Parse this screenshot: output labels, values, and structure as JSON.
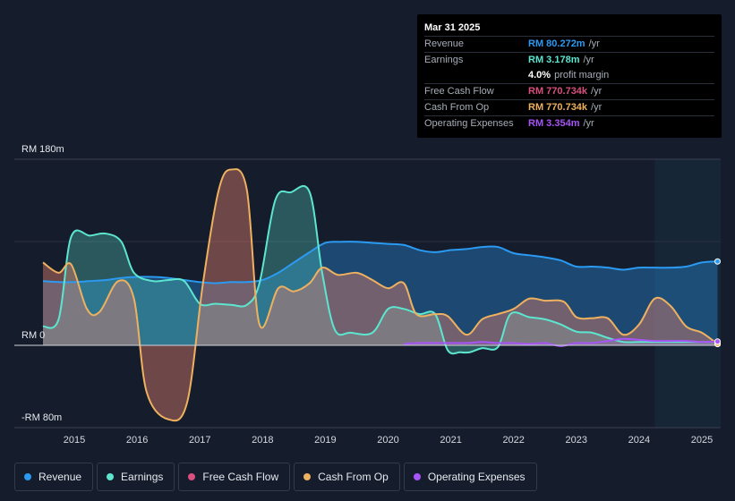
{
  "tooltip": {
    "date": "Mar 31 2025",
    "rows": [
      {
        "label": "Revenue",
        "value": "RM 80.272m",
        "unit": "/yr",
        "color": "#2b9af3"
      },
      {
        "label": "Earnings",
        "value": "RM 3.178m",
        "unit": "/yr",
        "color": "#5de6cf"
      },
      {
        "label": "",
        "value": "4.0%",
        "unit": "profit margin",
        "color": "#ffffff"
      },
      {
        "label": "Free Cash Flow",
        "value": "RM 770.734k",
        "unit": "/yr",
        "color": "#d94f7e"
      },
      {
        "label": "Cash From Op",
        "value": "RM 770.734k",
        "unit": "/yr",
        "color": "#eeb15f"
      },
      {
        "label": "Operating Expenses",
        "value": "RM 3.354m",
        "unit": "/yr",
        "color": "#a855f7"
      }
    ]
  },
  "legend": [
    {
      "label": "Revenue",
      "color": "#2b9af3"
    },
    {
      "label": "Earnings",
      "color": "#5de6cf"
    },
    {
      "label": "Free Cash Flow",
      "color": "#d94f7e"
    },
    {
      "label": "Cash From Op",
      "color": "#eeb15f"
    },
    {
      "label": "Operating Expenses",
      "color": "#a855f7"
    }
  ],
  "chart_data": {
    "type": "area",
    "title": "",
    "y_axis_labels": {
      "top": "RM 180m",
      "zero": "RM 0",
      "bottom": "-RM 80m"
    },
    "ylim": [
      -80,
      180
    ],
    "xlim": [
      2014.5,
      2025.3
    ],
    "x_ticks": [
      {
        "label": "2015",
        "value": 2015
      },
      {
        "label": "2016",
        "value": 2016
      },
      {
        "label": "2017",
        "value": 2017
      },
      {
        "label": "2018",
        "value": 2018
      },
      {
        "label": "2019",
        "value": 2019
      },
      {
        "label": "2020",
        "value": 2020
      },
      {
        "label": "2021",
        "value": 2021
      },
      {
        "label": "2022",
        "value": 2022
      },
      {
        "label": "2023",
        "value": 2023
      },
      {
        "label": "2024",
        "value": 2024
      },
      {
        "label": "2025",
        "value": 2025
      }
    ],
    "forecast_start": 2024.25,
    "series": [
      {
        "name": "Revenue",
        "color": "#2b9af3",
        "points": [
          [
            2014.5,
            62
          ],
          [
            2014.75,
            61
          ],
          [
            2015,
            61
          ],
          [
            2015.25,
            62
          ],
          [
            2015.5,
            63
          ],
          [
            2015.75,
            65
          ],
          [
            2016,
            66
          ],
          [
            2016.25,
            66
          ],
          [
            2016.5,
            65
          ],
          [
            2016.75,
            63
          ],
          [
            2017,
            61
          ],
          [
            2017.25,
            60
          ],
          [
            2017.5,
            61
          ],
          [
            2017.75,
            61
          ],
          [
            2018,
            63
          ],
          [
            2018.25,
            70
          ],
          [
            2018.5,
            80
          ],
          [
            2018.75,
            90
          ],
          [
            2019,
            99
          ],
          [
            2019.25,
            100
          ],
          [
            2019.5,
            100
          ],
          [
            2019.75,
            99
          ],
          [
            2020,
            98
          ],
          [
            2020.25,
            97
          ],
          [
            2020.5,
            92
          ],
          [
            2020.75,
            90
          ],
          [
            2021,
            92
          ],
          [
            2021.25,
            93
          ],
          [
            2021.5,
            95
          ],
          [
            2021.75,
            95
          ],
          [
            2022,
            89
          ],
          [
            2022.25,
            87
          ],
          [
            2022.5,
            85
          ],
          [
            2022.75,
            82
          ],
          [
            2023,
            76
          ],
          [
            2023.25,
            76
          ],
          [
            2023.5,
            75
          ],
          [
            2023.75,
            73
          ],
          [
            2024,
            75
          ],
          [
            2024.25,
            75
          ],
          [
            2024.5,
            75
          ],
          [
            2024.75,
            76
          ],
          [
            2025,
            80
          ],
          [
            2025.25,
            81
          ]
        ]
      },
      {
        "name": "Earnings",
        "color": "#5de6cf",
        "points": [
          [
            2014.5,
            18
          ],
          [
            2014.75,
            25
          ],
          [
            2014.95,
            105
          ],
          [
            2015.25,
            106
          ],
          [
            2015.5,
            108
          ],
          [
            2015.75,
            100
          ],
          [
            2015.95,
            70
          ],
          [
            2016.25,
            62
          ],
          [
            2016.5,
            63
          ],
          [
            2016.75,
            62
          ],
          [
            2017,
            40
          ],
          [
            2017.25,
            40
          ],
          [
            2017.5,
            39
          ],
          [
            2017.75,
            39
          ],
          [
            2017.95,
            60
          ],
          [
            2018.2,
            140
          ],
          [
            2018.45,
            148
          ],
          [
            2018.75,
            148
          ],
          [
            2018.95,
            70
          ],
          [
            2019.15,
            15
          ],
          [
            2019.4,
            12
          ],
          [
            2019.75,
            12
          ],
          [
            2020,
            35
          ],
          [
            2020.25,
            35
          ],
          [
            2020.5,
            30
          ],
          [
            2020.75,
            30
          ],
          [
            2020.95,
            -5
          ],
          [
            2021.15,
            -7
          ],
          [
            2021.3,
            -7
          ],
          [
            2021.5,
            -3
          ],
          [
            2021.75,
            -2
          ],
          [
            2021.95,
            30
          ],
          [
            2022.25,
            27
          ],
          [
            2022.5,
            25
          ],
          [
            2022.75,
            20
          ],
          [
            2023,
            13
          ],
          [
            2023.25,
            12
          ],
          [
            2023.5,
            7
          ],
          [
            2023.75,
            3
          ],
          [
            2024,
            3
          ],
          [
            2024.5,
            3
          ],
          [
            2024.75,
            3
          ],
          [
            2025.25,
            3
          ]
        ]
      },
      {
        "name": "Free Cash Flow",
        "color": "#d94f7e",
        "points": [
          [
            2014.5,
            80
          ],
          [
            2014.75,
            70
          ],
          [
            2014.95,
            78
          ],
          [
            2015.2,
            35
          ],
          [
            2015.4,
            32
          ],
          [
            2015.7,
            62
          ],
          [
            2015.95,
            45
          ],
          [
            2016.15,
            -45
          ],
          [
            2016.5,
            -72
          ],
          [
            2016.8,
            -55
          ],
          [
            2017.05,
            60
          ],
          [
            2017.3,
            150
          ],
          [
            2017.5,
            170
          ],
          [
            2017.75,
            150
          ],
          [
            2017.95,
            20
          ],
          [
            2018.25,
            55
          ],
          [
            2018.5,
            52
          ],
          [
            2018.75,
            60
          ],
          [
            2018.95,
            75
          ],
          [
            2019.2,
            68
          ],
          [
            2019.5,
            70
          ],
          [
            2019.75,
            63
          ],
          [
            2020,
            55
          ],
          [
            2020.25,
            60
          ],
          [
            2020.45,
            30
          ],
          [
            2020.75,
            30
          ],
          [
            2020.95,
            28
          ],
          [
            2021.25,
            10
          ],
          [
            2021.5,
            25
          ],
          [
            2021.75,
            30
          ],
          [
            2022,
            35
          ],
          [
            2022.25,
            45
          ],
          [
            2022.5,
            43
          ],
          [
            2022.8,
            42
          ],
          [
            2023,
            27
          ],
          [
            2023.25,
            26
          ],
          [
            2023.5,
            26
          ],
          [
            2023.75,
            10
          ],
          [
            2024,
            20
          ],
          [
            2024.25,
            45
          ],
          [
            2024.5,
            38
          ],
          [
            2024.75,
            18
          ],
          [
            2025,
            12
          ],
          [
            2025.25,
            1
          ]
        ]
      },
      {
        "name": "Cash From Op",
        "color": "#eeb15f",
        "points": [
          [
            2014.5,
            80
          ],
          [
            2014.75,
            70
          ],
          [
            2014.95,
            78
          ],
          [
            2015.2,
            35
          ],
          [
            2015.4,
            32
          ],
          [
            2015.7,
            62
          ],
          [
            2015.95,
            45
          ],
          [
            2016.15,
            -45
          ],
          [
            2016.5,
            -72
          ],
          [
            2016.8,
            -55
          ],
          [
            2017.05,
            60
          ],
          [
            2017.3,
            150
          ],
          [
            2017.5,
            170
          ],
          [
            2017.75,
            150
          ],
          [
            2017.95,
            20
          ],
          [
            2018.25,
            55
          ],
          [
            2018.5,
            52
          ],
          [
            2018.75,
            60
          ],
          [
            2018.95,
            75
          ],
          [
            2019.2,
            68
          ],
          [
            2019.5,
            70
          ],
          [
            2019.75,
            63
          ],
          [
            2020,
            55
          ],
          [
            2020.25,
            60
          ],
          [
            2020.45,
            30
          ],
          [
            2020.75,
            30
          ],
          [
            2020.95,
            28
          ],
          [
            2021.25,
            10
          ],
          [
            2021.5,
            25
          ],
          [
            2021.75,
            30
          ],
          [
            2022,
            35
          ],
          [
            2022.25,
            45
          ],
          [
            2022.5,
            43
          ],
          [
            2022.8,
            42
          ],
          [
            2023,
            27
          ],
          [
            2023.25,
            26
          ],
          [
            2023.5,
            26
          ],
          [
            2023.75,
            10
          ],
          [
            2024,
            20
          ],
          [
            2024.25,
            45
          ],
          [
            2024.5,
            38
          ],
          [
            2024.75,
            18
          ],
          [
            2025,
            12
          ],
          [
            2025.25,
            1
          ]
        ]
      },
      {
        "name": "Operating Expenses",
        "color": "#a855f7",
        "points": [
          [
            2020.25,
            1
          ],
          [
            2020.5,
            2
          ],
          [
            2020.75,
            2
          ],
          [
            2021,
            2
          ],
          [
            2021.25,
            2
          ],
          [
            2021.5,
            3
          ],
          [
            2021.75,
            2
          ],
          [
            2022,
            2
          ],
          [
            2022.25,
            1
          ],
          [
            2022.5,
            2
          ],
          [
            2022.75,
            -1
          ],
          [
            2023,
            2
          ],
          [
            2023.25,
            2
          ],
          [
            2023.5,
            4
          ],
          [
            2023.75,
            6
          ],
          [
            2024,
            5
          ],
          [
            2024.25,
            4
          ],
          [
            2024.5,
            4
          ],
          [
            2024.75,
            4
          ],
          [
            2025,
            3
          ],
          [
            2025.25,
            3.4
          ]
        ]
      }
    ]
  }
}
